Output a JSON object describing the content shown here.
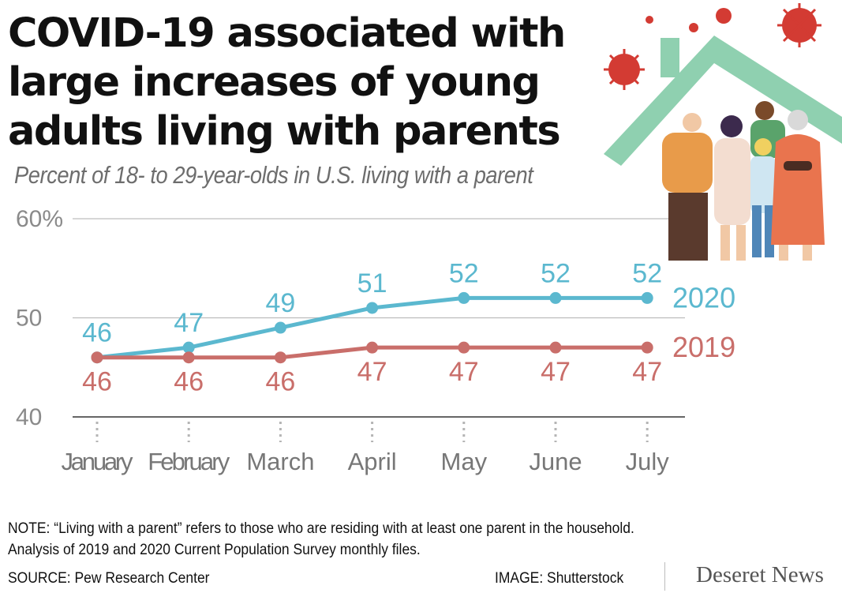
{
  "title": "COVID-19 associated with large increases of young adults living with parents",
  "subtitle": "Percent of 18- to 29-year-olds in U.S. living with a parent",
  "note_line1": "NOTE: “Living with a parent” refers to those who are residing with at least one parent in the household.",
  "note_line2": "Analysis of 2019 and 2020 Current Population Survey monthly files.",
  "source": "SOURCE: Pew Research Center",
  "image_credit": "IMAGE: Shutterstock",
  "brand": "Deseret News",
  "illustration": "family-under-house-roof-with-virus-particles",
  "colors": {
    "series_2020": "#5bb8cf",
    "series_2019": "#c96e6a",
    "roof": "#8fd0b0",
    "virus": "#d33b33"
  },
  "chart_data": {
    "type": "line",
    "title": "COVID-19 associated with large increases of young adults living with parents",
    "subtitle": "Percent of 18- to 29-year-olds in U.S. living with a parent",
    "categories": [
      "January",
      "February",
      "March",
      "April",
      "May",
      "June",
      "July"
    ],
    "ylim": [
      40,
      60
    ],
    "yticks": [
      "40",
      "50",
      "60%"
    ],
    "grid": true,
    "series": [
      {
        "name": "2020",
        "values": [
          46,
          47,
          49,
          51,
          52,
          52,
          52
        ],
        "labels": [
          "46",
          "47",
          "49",
          "51",
          "52",
          "52",
          "52"
        ],
        "color": "#5bb8cf"
      },
      {
        "name": "2019",
        "values": [
          46,
          46,
          46,
          47,
          47,
          47,
          47
        ],
        "labels": [
          "46",
          "46",
          "46",
          "47",
          "47",
          "47",
          "47"
        ],
        "color": "#c96e6a"
      }
    ]
  }
}
